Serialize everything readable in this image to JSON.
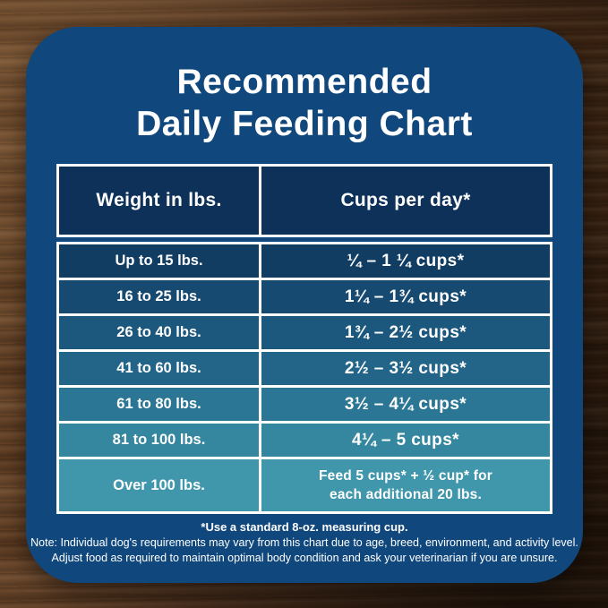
{
  "title": {
    "line1": "Recommended",
    "line2": "Daily Feeding Chart"
  },
  "table": {
    "headers": [
      "Weight in lbs.",
      "Cups per day*"
    ],
    "rows": [
      {
        "weight": "Up to 15 lbs.",
        "cups": "¼ – 1 ¼ cups*"
      },
      {
        "weight": "16 to 25 lbs.",
        "cups": "1¼ – 1¾  cups*"
      },
      {
        "weight": "26 to 40 lbs.",
        "cups": "1¾ – 2½ cups*"
      },
      {
        "weight": "41 to 60 lbs.",
        "cups": "2½ – 3½ cups*"
      },
      {
        "weight": "61 to 80 lbs.",
        "cups": "3½ – 4¼ cups*"
      },
      {
        "weight": "81 to 100 lbs.",
        "cups": "4¼ – 5 cups*"
      },
      {
        "weight": "Over 100 lbs.",
        "cups_line1": "Feed 5 cups* + ½ cup* for",
        "cups_line2": "each additional 20 lbs."
      }
    ]
  },
  "footnotes": {
    "cup_note": "*Use a standard 8-oz. measuring cup.",
    "note_line1": "Note: Individual dog's requirements may vary from this chart due to age, breed, environment, and activity level.",
    "note_line2": "Adjust food as required to maintain optimal body condition and ask your veterinarian if you are unsure."
  },
  "colors": {
    "card": "#10477c",
    "header": "#0d3158",
    "border": "#ffffff",
    "text": "#ffffff",
    "rows": [
      "#123d63",
      "#174a70",
      "#1c577d",
      "#226589",
      "#2b7694",
      "#35869f",
      "#4096ab"
    ],
    "wood_base": "#543520",
    "wood_dark": "#301d0e",
    "wood_light": "#6f4a2b"
  },
  "chart_data": {
    "type": "table",
    "title": "Recommended Daily Feeding Chart",
    "columns": [
      "Weight in lbs.",
      "Cups per day*"
    ],
    "rows": [
      [
        "Up to 15 lbs.",
        "¼ – 1 ¼ cups*"
      ],
      [
        "16 to 25 lbs.",
        "1¼ – 1¾ cups*"
      ],
      [
        "26 to 40 lbs.",
        "1¾ – 2½ cups*"
      ],
      [
        "41 to 60 lbs.",
        "2½ – 3½ cups*"
      ],
      [
        "61 to 80 lbs.",
        "3½ – 4¼ cups*"
      ],
      [
        "81 to 100 lbs.",
        "4¼ – 5 cups*"
      ],
      [
        "Over 100 lbs.",
        "Feed 5 cups* + ½ cup* for each additional 20 lbs."
      ]
    ],
    "footnotes": [
      "*Use a standard 8-oz. measuring cup.",
      "Note: Individual dog's requirements may vary from this chart due to age, breed, environment, and activity level.",
      "Adjust food as required to maintain optimal body condition and ask your veterinarian if you are unsure."
    ]
  }
}
